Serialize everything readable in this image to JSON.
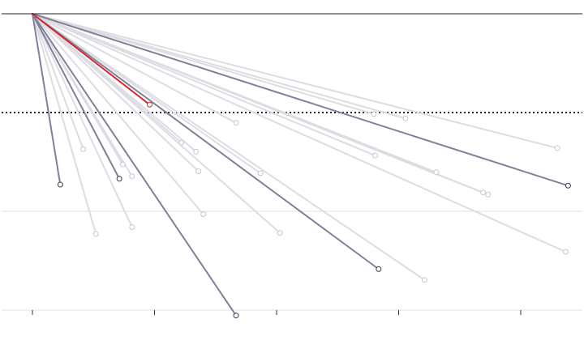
{
  "chart_data": {
    "type": "line",
    "title": "",
    "xlabel": "",
    "ylabel": "",
    "x_axis": {
      "min": 0,
      "max": 10,
      "ticks": [
        0,
        2.5,
        5,
        7.5,
        10
      ],
      "tick_labels": []
    },
    "y_axis": {
      "min": -60,
      "max": 0,
      "gridlines": [
        -20,
        -40,
        -60
      ],
      "dotted_reference": -20
    },
    "grid": true,
    "legend": "none",
    "origin": {
      "x": 0,
      "y": 0
    },
    "series": [
      {
        "x": 0.57,
        "y": -34.6,
        "style": "dark"
      },
      {
        "x": 1.78,
        "y": -33.4,
        "style": "dark"
      },
      {
        "x": 2.4,
        "y": -18.4,
        "style": "highlight"
      },
      {
        "x": 4.17,
        "y": -61.1,
        "style": "dark"
      },
      {
        "x": 7.09,
        "y": -51.7,
        "style": "dark"
      },
      {
        "x": 10.97,
        "y": -34.8,
        "style": "dark"
      },
      {
        "x": 1.04,
        "y": -27.4,
        "style": "light"
      },
      {
        "x": 1.3,
        "y": -44.6,
        "style": "light"
      },
      {
        "x": 1.85,
        "y": -30.5,
        "style": "light"
      },
      {
        "x": 2.04,
        "y": -43.2,
        "style": "light"
      },
      {
        "x": 2.04,
        "y": -32.9,
        "style": "light"
      },
      {
        "x": 3.05,
        "y": -26.1,
        "style": "light"
      },
      {
        "x": 3.35,
        "y": -27.9,
        "style": "light"
      },
      {
        "x": 3.4,
        "y": -31.9,
        "style": "light"
      },
      {
        "x": 3.5,
        "y": -40.6,
        "style": "light"
      },
      {
        "x": 4.17,
        "y": -22.1,
        "style": "light"
      },
      {
        "x": 4.67,
        "y": -32.3,
        "style": "light"
      },
      {
        "x": 5.07,
        "y": -44.4,
        "style": "light"
      },
      {
        "x": 6.99,
        "y": -20.3,
        "style": "light"
      },
      {
        "x": 7.02,
        "y": -28.7,
        "style": "light"
      },
      {
        "x": 7.64,
        "y": -21.2,
        "style": "light"
      },
      {
        "x": 8.03,
        "y": -53.9,
        "style": "light"
      },
      {
        "x": 8.27,
        "y": -32.1,
        "style": "light"
      },
      {
        "x": 9.23,
        "y": -36.2,
        "style": "light"
      },
      {
        "x": 9.33,
        "y": -36.6,
        "style": "light"
      },
      {
        "x": 10.75,
        "y": -27.2,
        "style": "light"
      },
      {
        "x": 10.92,
        "y": -48.2,
        "style": "light"
      }
    ]
  },
  "colors": {
    "dark": "#80809a",
    "light": "#dcdde3",
    "highlight": "#d9262b",
    "axis": "#222222",
    "grid": "#e0e0e0",
    "tick": "#333333"
  }
}
